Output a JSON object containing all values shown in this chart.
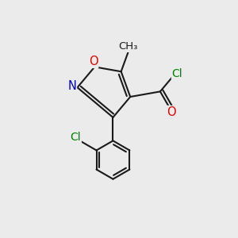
{
  "bg_color": "#ebebeb",
  "bond_color": "#1a1a1a",
  "bond_width": 1.5,
  "figsize": [
    3.0,
    3.0
  ],
  "dpi": 100,
  "atom_colors": {
    "C": "#1a1a1a",
    "O": "#e00000",
    "N": "#0000cc",
    "Cl": "#008000"
  }
}
